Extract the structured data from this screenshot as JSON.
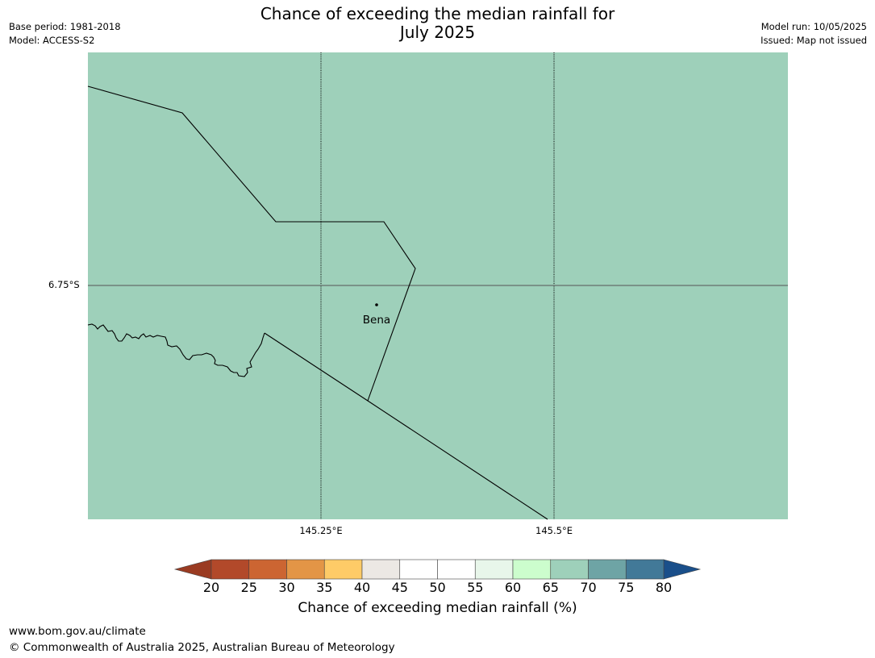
{
  "title": {
    "line1": "Chance of exceeding the median rainfall for",
    "line2": "July 2025"
  },
  "header_left": {
    "base_period": "Base period: 1981-2018",
    "model": "Model: ACCESS-S2"
  },
  "header_right": {
    "model_run": "Model run: 10/05/2025",
    "issued": "Issued: Map not issued"
  },
  "map": {
    "fill_color": "#9ed0ba",
    "place_label": "Bena",
    "lat_labels": [
      "6.75°S"
    ],
    "lon_labels": [
      "145.25°E",
      "145.5°E"
    ]
  },
  "colorbar": {
    "label": "Chance of exceeding median rainfall (%)",
    "ticks": [
      "20",
      "25",
      "30",
      "35",
      "40",
      "45",
      "50",
      "55",
      "60",
      "65",
      "70",
      "75",
      "80"
    ],
    "below_color": "#9a3b22",
    "above_color": "#1a4f8a",
    "bins": [
      {
        "range": "20-25",
        "color": "#b2492a"
      },
      {
        "range": "25-30",
        "color": "#cc6532"
      },
      {
        "range": "30-35",
        "color": "#e39546"
      },
      {
        "range": "35-40",
        "color": "#fecb67"
      },
      {
        "range": "40-45",
        "color": "#ece8e4"
      },
      {
        "range": "45-50",
        "color": "#ffffff"
      },
      {
        "range": "50-55",
        "color": "#ffffff"
      },
      {
        "range": "55-60",
        "color": "#e8f6ea"
      },
      {
        "range": "60-65",
        "color": "#ccfdcd"
      },
      {
        "range": "65-70",
        "color": "#9ed0ba"
      },
      {
        "range": "70-75",
        "color": "#6ea4a5"
      },
      {
        "range": "75-80",
        "color": "#427998"
      }
    ]
  },
  "footer": {
    "url": "www.bom.gov.au/climate",
    "copyright": "© Commonwealth of Australia 2025, Australian Bureau of Meteorology"
  }
}
